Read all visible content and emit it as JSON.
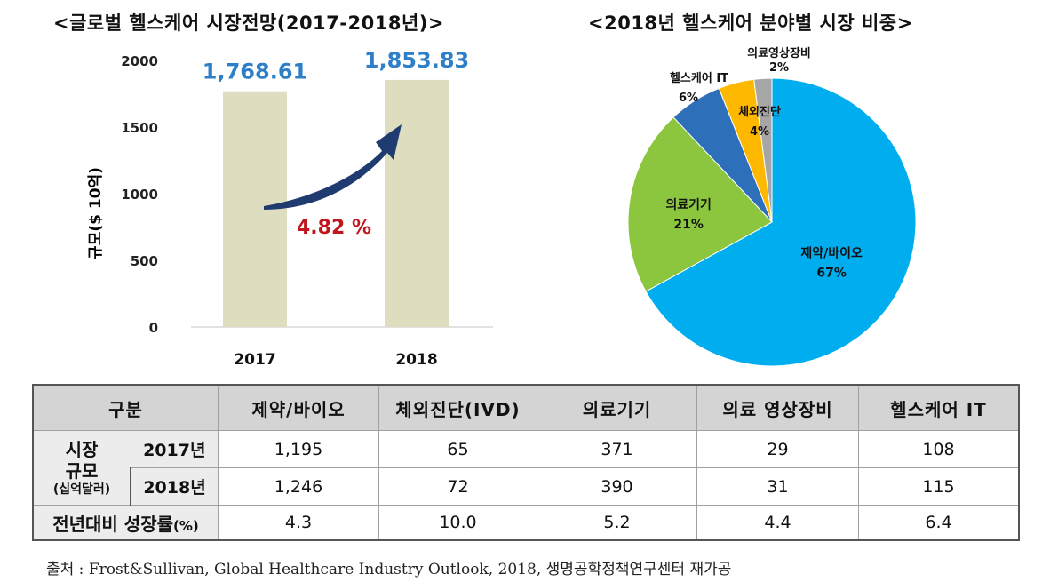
{
  "left_chart": {
    "title": "<글로벌 헬스케어 시장전망(2017-2018년)>",
    "ylabel": "규모($ 10억)",
    "yticks": [
      "0",
      "500",
      "1000",
      "1500",
      "2000"
    ],
    "growth_label": "4.82 %",
    "colors": {
      "bar": "#deddbf",
      "value_label": "#2f7fc8",
      "growth": "#c0161e",
      "arrow": "#1f3b6f"
    }
  },
  "right_chart": {
    "title": "<2018년 헬스케어 분야별 시장 비중>",
    "colors": [
      "#00aeef",
      "#8cc63f",
      "#2e6fba",
      "#ffb800",
      "#a6a6a6"
    ]
  },
  "chart_data": [
    {
      "type": "bar",
      "title": "<글로벌 헬스케어 시장전망(2017-2018년)>",
      "categories": [
        "2017",
        "2018"
      ],
      "values": [
        1768.61,
        1853.83
      ],
      "value_labels": [
        "1,768.61",
        "1,853.83"
      ],
      "xlabel": "",
      "ylabel": "규모($ 10억)",
      "ylim": [
        0,
        2000
      ],
      "annotation": "4.82 %"
    },
    {
      "type": "pie",
      "title": "<2018년 헬스케어 분야별 시장 비중>",
      "labels": [
        "제약/바이오",
        "의료기기",
        "헬스케어 IT",
        "체외진단",
        "의료영상장비"
      ],
      "values": [
        67,
        21,
        6,
        4,
        2
      ],
      "value_labels": [
        "67%",
        "21%",
        "6%",
        "4%",
        "2%"
      ]
    }
  ],
  "table": {
    "header": [
      "구분",
      "제약/바이오",
      "체외진단(IVD)",
      "의료기기",
      "의료 영상장비",
      "헬스케어 IT"
    ],
    "market_size_label": "시장",
    "market_size_label2": "규모",
    "market_size_unit": "(십억달러)",
    "rows": [
      {
        "year": "2017년",
        "values": [
          "1,195",
          "65",
          "371",
          "29",
          "108"
        ]
      },
      {
        "year": "2018년",
        "values": [
          "1,246",
          "72",
          "390",
          "31",
          "115"
        ]
      }
    ],
    "growth_label": "전년대비 성장률",
    "growth_unit": "(%)",
    "growth_values": [
      "4.3",
      "10.0",
      "5.2",
      "4.4",
      "6.4"
    ]
  },
  "source": "출처 : Frost&Sullivan, Global Healthcare Industry Outlook, 2018, 생명공학정책연구센터 재가공"
}
